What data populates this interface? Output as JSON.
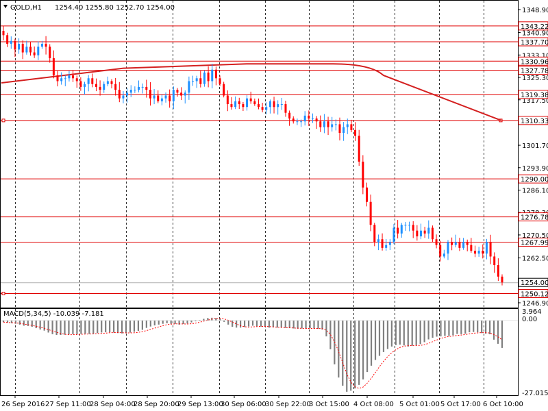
{
  "header": {
    "symbol": "GOLD,H1",
    "ohlc": "1254.40 1255.80 1252.70 1254.00",
    "dropdown_icon": "triangle-down-icon"
  },
  "indicator": {
    "label": "MACD(5,34,5) -10.039 -7.181",
    "scale_top": "3.964",
    "scale_zero": "0.00",
    "scale_bottom": "-27.015"
  },
  "colors": {
    "bull_candle": "#1e90ff",
    "bear_candle": "#ff0000",
    "level_line": "#e00000",
    "moving_average": "#d42020",
    "grid": "#000000",
    "macd_bar": "#7f7f7f",
    "signal_line": "#ff0000",
    "badge_bg": "#ffffff"
  },
  "chart_data": {
    "type": "candlestick",
    "symbol": "GOLD",
    "timeframe": "H1",
    "price_ticks": [
      "1348.90",
      "1340.90",
      "1333.10",
      "1325.30",
      "1317.50",
      "1301.70",
      "1293.90",
      "1286.10",
      "1278.30",
      "1270.50",
      "1262.50",
      "1246.90"
    ],
    "price_range": [
      1244.0,
      1352.0
    ],
    "time_labels": [
      "26 Sep 2016",
      "27 Sep 11:00",
      "28 Sep 04:00",
      "28 Sep 20:00",
      "29 Sep 13:00",
      "30 Sep 06:00",
      "30 Sep 22:00",
      "3 Oct 15:00",
      "4 Oct 08:00",
      "5 Oct 01:00",
      "5 Oct 17:00",
      "6 Oct 10:00"
    ],
    "grid": true,
    "levels": [
      {
        "label": "1343.22",
        "price": 1343.22
      },
      {
        "label": "1337.70",
        "price": 1337.7
      },
      {
        "label": "1330.96",
        "price": 1330.96
      },
      {
        "label": "1327.78",
        "price": 1327.78
      },
      {
        "label": "1319.38",
        "price": 1319.38
      },
      {
        "label": "1310.33",
        "price": 1310.33
      },
      {
        "label": "1290.00",
        "price": 1290.0
      },
      {
        "label": "1276.78",
        "price": 1276.78
      },
      {
        "label": "1267.99",
        "price": 1267.99
      },
      {
        "label": "1250.12",
        "price": 1250.12
      }
    ],
    "current_price": {
      "label": "1254.00",
      "price": 1254.0
    },
    "close_path": [
      1340,
      1337,
      1338,
      1335,
      1337,
      1334,
      1336,
      1334,
      1333,
      1336,
      1337,
      1336,
      1332,
      1326,
      1324,
      1325,
      1325,
      1326,
      1325,
      1324,
      1322,
      1323,
      1325,
      1323,
      1322,
      1321,
      1323,
      1324,
      1323,
      1321,
      1318,
      1319,
      1320,
      1321,
      1321,
      1322,
      1322,
      1321,
      1318,
      1319,
      1317,
      1318,
      1319,
      1317,
      1321,
      1320,
      1319,
      1320,
      1324,
      1324,
      1325,
      1323,
      1327,
      1324,
      1328,
      1325,
      1323,
      1319,
      1316,
      1315,
      1317,
      1316,
      1315,
      1318,
      1317,
      1316,
      1315,
      1314,
      1315,
      1317,
      1315,
      1316,
      1316,
      1313,
      1311,
      1310,
      1310,
      1310,
      1312,
      1311,
      1311,
      1310,
      1308,
      1310,
      1308,
      1309,
      1309,
      1306,
      1308,
      1309,
      1307,
      1305,
      1296,
      1287,
      1282,
      1274,
      1268,
      1269,
      1266,
      1267,
      1268,
      1273,
      1271,
      1274,
      1274,
      1274,
      1272,
      1270,
      1272,
      1271,
      1273,
      1269,
      1267,
      1263,
      1264,
      1268,
      1267,
      1268,
      1266,
      1268,
      1267,
      1265,
      1264,
      1265,
      1264,
      1268,
      1263,
      1260,
      1256,
      1254
    ],
    "moving_average": [
      1323.4,
      1328.5,
      1330.0,
      1330.0,
      1327.9,
      1310.3
    ],
    "macd": {
      "params": "5,34,5",
      "value": -10.039,
      "signal": -7.181,
      "range": [
        -27.015,
        3.964
      ],
      "histogram": [
        -0.6,
        -0.8,
        -1.0,
        -1.2,
        -1.5,
        -1.9,
        -2.0,
        -2.3,
        -2.8,
        -3.3,
        -3.7,
        -4.4,
        -5.0,
        -5.3,
        -5.3,
        -5.2,
        -5.1,
        -5.0,
        -5.0,
        -4.9,
        -4.8,
        -4.9,
        -4.8,
        -4.6,
        -4.4,
        -4.3,
        -4.3,
        -4.4,
        -4.6,
        -4.7,
        -4.6,
        -4.4,
        -4.1,
        -3.8,
        -3.4,
        -2.7,
        -2.2,
        -1.8,
        -1.5,
        -1.2,
        -1.0,
        -1.2,
        -1.3,
        -1.5,
        -1.3,
        -1.1,
        -0.7,
        -0.3,
        0.2,
        0.6,
        0.9,
        1.0,
        0.9,
        0.6,
        -0.5,
        -1.5,
        -2.3,
        -2.6,
        -2.6,
        -2.4,
        -2.2,
        -1.9,
        -2.1,
        -2.2,
        -2.3,
        -2.6,
        -2.5,
        -2.6,
        -2.6,
        -2.7,
        -2.8,
        -2.9,
        -3.0,
        -2.9,
        -2.9,
        -2.8,
        -2.9,
        -3.0,
        -3.3,
        -5.8,
        -10.5,
        -16.0,
        -20.8,
        -23.8,
        -26.0,
        -25.6,
        -24.8,
        -23.5,
        -21.5,
        -18.8,
        -16.5,
        -14.4,
        -12.9,
        -11.5,
        -10.4,
        -9.5,
        -9.0,
        -8.8,
        -9.1,
        -9.5,
        -9.2,
        -9.0,
        -8.6,
        -7.9,
        -6.9,
        -6.3,
        -5.9,
        -5.8,
        -5.6,
        -5.6,
        -5.4,
        -4.9,
        -5.0,
        -4.8,
        -4.3,
        -4.2,
        -4.3,
        -4.6,
        -4.8,
        -5.0,
        -7.0,
        -8.5,
        -10.0
      ]
    }
  }
}
